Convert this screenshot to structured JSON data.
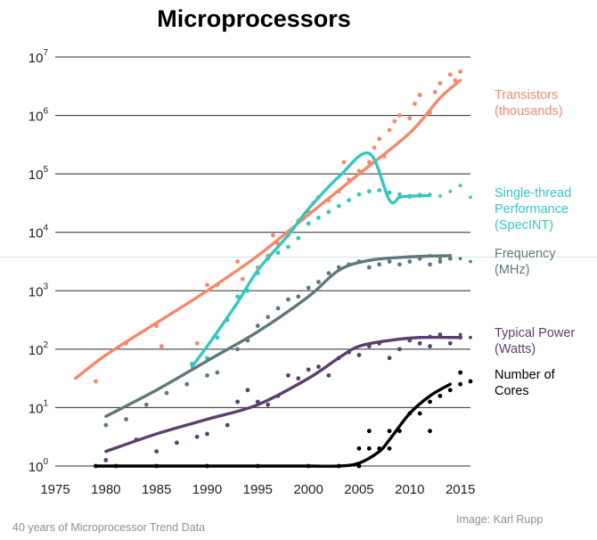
{
  "chart_data": {
    "type": "scatter",
    "title": "Microprocessors",
    "xlabel": "",
    "ylabel": "",
    "xlim": [
      1975,
      2016
    ],
    "ylim": [
      0,
      7
    ],
    "y_scale": "log10",
    "x_ticks": [
      "1975",
      "1980",
      "1985",
      "1990",
      "1995",
      "2000",
      "2005",
      "2010",
      "2015"
    ],
    "y_ticks": [
      {
        "base": "10",
        "exp": "0"
      },
      {
        "base": "10",
        "exp": "1"
      },
      {
        "base": "10",
        "exp": "2"
      },
      {
        "base": "10",
        "exp": "3"
      },
      {
        "base": "10",
        "exp": "4"
      },
      {
        "base": "10",
        "exp": "5"
      },
      {
        "base": "10",
        "exp": "6"
      },
      {
        "base": "10",
        "exp": "7"
      }
    ],
    "grid": "horizontal",
    "legend": "right",
    "series": [
      {
        "name": "Transistors\n(thousands)",
        "color": "#f4896b",
        "trend": [
          [
            1977,
            1.5
          ],
          [
            1980,
            1.9
          ],
          [
            1985,
            2.45
          ],
          [
            1990,
            3.0
          ],
          [
            1995,
            3.6
          ],
          [
            2000,
            4.3
          ],
          [
            2005,
            5.0
          ],
          [
            2010,
            5.7
          ],
          [
            2013,
            6.3
          ],
          [
            2015,
            6.6
          ]
        ],
        "points": [
          [
            1979,
            1.45
          ],
          [
            1982,
            2.1
          ],
          [
            1985,
            2.4
          ],
          [
            1985.5,
            2.05
          ],
          [
            1989,
            2.1
          ],
          [
            1990,
            3.1
          ],
          [
            1991,
            3.1
          ],
          [
            1993,
            3.5
          ],
          [
            1993.5,
            3.2
          ],
          [
            1995,
            3.4
          ],
          [
            1996,
            3.6
          ],
          [
            1996.5,
            3.95
          ],
          [
            1997,
            3.8
          ],
          [
            1998,
            3.95
          ],
          [
            1999,
            4.2
          ],
          [
            2000,
            4.35
          ],
          [
            2000.5,
            4.5
          ],
          [
            2001,
            4.6
          ],
          [
            2002,
            4.55
          ],
          [
            2003,
            4.7
          ],
          [
            2003.5,
            5.2
          ],
          [
            2004,
            4.9
          ],
          [
            2005,
            5.05
          ],
          [
            2006,
            5.2
          ],
          [
            2006.5,
            5.45
          ],
          [
            2007,
            5.6
          ],
          [
            2007.5,
            5.3
          ],
          [
            2008,
            5.75
          ],
          [
            2008.5,
            5.9
          ],
          [
            2009,
            6.0
          ],
          [
            2010,
            5.95
          ],
          [
            2010.5,
            6.2
          ],
          [
            2011,
            6.35
          ],
          [
            2012,
            6.05
          ],
          [
            2012.5,
            6.4
          ],
          [
            2013,
            6.55
          ],
          [
            2014,
            6.7
          ],
          [
            2014.5,
            6.6
          ],
          [
            2015,
            6.75
          ]
        ]
      },
      {
        "name": "Single-thread\nPerformance\n(SpecINT)",
        "color": "#35c7bf",
        "trend": [
          [
            1988.5,
            1.7
          ],
          [
            1990,
            2.05
          ],
          [
            1993,
            2.8
          ],
          [
            1995,
            3.35
          ],
          [
            1998,
            3.95
          ],
          [
            2000,
            4.4
          ],
          [
            2003,
            4.95
          ],
          [
            2006,
            5.35
          ],
          [
            2008,
            4.55
          ],
          [
            2009,
            4.6
          ],
          [
            2010,
            4.62
          ],
          [
            2012,
            4.63
          ]
        ],
        "dotted_tail": [
          [
            2010,
            4.6
          ],
          [
            2011,
            4.62
          ],
          [
            2012,
            4.65
          ],
          [
            2013,
            4.62
          ],
          [
            2014,
            4.7
          ],
          [
            2015,
            4.8
          ],
          [
            2016,
            4.6
          ]
        ],
        "points": [
          [
            1988.5,
            1.75
          ],
          [
            1990,
            1.85
          ],
          [
            1991,
            2.2
          ],
          [
            1992,
            2.5
          ],
          [
            1993,
            2.9
          ],
          [
            1994,
            3.0
          ],
          [
            1995,
            3.3
          ],
          [
            1996,
            3.55
          ],
          [
            1997,
            3.65
          ],
          [
            1998,
            3.75
          ],
          [
            1999,
            3.9
          ],
          [
            2000,
            4.15
          ],
          [
            2001,
            4.25
          ],
          [
            2002,
            4.35
          ],
          [
            2003,
            4.45
          ],
          [
            2004,
            4.55
          ],
          [
            2005,
            4.65
          ],
          [
            2006,
            4.7
          ],
          [
            2007,
            4.72
          ],
          [
            2008,
            4.68
          ],
          [
            2009,
            4.65
          ],
          [
            2010,
            4.62
          ],
          [
            2011,
            4.64
          ]
        ]
      },
      {
        "name": "Frequency\n(MHz)",
        "color": "#5f7a7a",
        "trend": [
          [
            1980,
            0.85
          ],
          [
            1985,
            1.3
          ],
          [
            1990,
            1.8
          ],
          [
            1995,
            2.3
          ],
          [
            2000,
            2.9
          ],
          [
            2003,
            3.35
          ],
          [
            2006,
            3.52
          ],
          [
            2010,
            3.58
          ],
          [
            2014,
            3.6
          ]
        ],
        "dotted_tail": [
          [
            2010,
            3.58
          ],
          [
            2011,
            3.55
          ],
          [
            2012,
            3.6
          ],
          [
            2013,
            3.55
          ],
          [
            2014,
            3.6
          ],
          [
            2015,
            3.55
          ],
          [
            2016,
            3.5
          ]
        ],
        "points": [
          [
            1980,
            0.7
          ],
          [
            1982,
            0.8
          ],
          [
            1984,
            1.05
          ],
          [
            1986,
            1.25
          ],
          [
            1988,
            1.4
          ],
          [
            1990,
            1.55
          ],
          [
            1991,
            1.6
          ],
          [
            1993,
            2.0
          ],
          [
            1994,
            2.15
          ],
          [
            1995,
            2.4
          ],
          [
            1996,
            2.55
          ],
          [
            1997,
            2.7
          ],
          [
            1998,
            2.85
          ],
          [
            1999,
            2.9
          ],
          [
            2000,
            3.05
          ],
          [
            2001,
            3.15
          ],
          [
            2002,
            3.3
          ],
          [
            2003,
            3.4
          ],
          [
            2004,
            3.45
          ],
          [
            2005,
            3.5
          ],
          [
            2006,
            3.4
          ],
          [
            2007,
            3.45
          ],
          [
            2008,
            3.5
          ],
          [
            2009,
            3.45
          ],
          [
            2010,
            3.5
          ],
          [
            2011,
            3.55
          ],
          [
            2012,
            3.45
          ],
          [
            2013,
            3.5
          ],
          [
            2014,
            3.55
          ]
        ]
      },
      {
        "name": "Typical Power\n(Watts)",
        "color": "#5b3f6f",
        "trend": [
          [
            1980,
            0.25
          ],
          [
            1985,
            0.55
          ],
          [
            1990,
            0.8
          ],
          [
            1995,
            1.05
          ],
          [
            2000,
            1.5
          ],
          [
            2003,
            1.85
          ],
          [
            2005,
            2.05
          ],
          [
            2008,
            2.15
          ],
          [
            2011,
            2.2
          ],
          [
            2015,
            2.2
          ]
        ],
        "dotted_tail": [
          [
            2011,
            2.2
          ],
          [
            2012,
            2.22
          ],
          [
            2013,
            2.24
          ],
          [
            2014,
            2.2
          ],
          [
            2015,
            2.25
          ],
          [
            2016,
            2.2
          ]
        ],
        "points": [
          [
            1980,
            0.1
          ],
          [
            1983,
            0.45
          ],
          [
            1985,
            0.25
          ],
          [
            1987,
            0.4
          ],
          [
            1989,
            0.5
          ],
          [
            1990,
            0.55
          ],
          [
            1992,
            0.7
          ],
          [
            1993,
            1.1
          ],
          [
            1994,
            1.3
          ],
          [
            1995,
            1.1
          ],
          [
            1996,
            1.05
          ],
          [
            1997,
            1.2
          ],
          [
            1998,
            1.55
          ],
          [
            1999,
            1.5
          ],
          [
            2000,
            1.65
          ],
          [
            2001,
            1.7
          ],
          [
            2002,
            1.55
          ],
          [
            2003,
            1.85
          ],
          [
            2004,
            1.95
          ],
          [
            2005,
            1.9
          ],
          [
            2006,
            2.05
          ],
          [
            2007,
            2.1
          ],
          [
            2008,
            1.85
          ],
          [
            2009,
            2.0
          ],
          [
            2010,
            2.15
          ],
          [
            2011,
            2.1
          ],
          [
            2012,
            2.05
          ],
          [
            2013,
            2.25
          ],
          [
            2014,
            2.1
          ],
          [
            2015,
            2.2
          ]
        ]
      },
      {
        "name": "Number of\nCores",
        "color": "#000000",
        "trend": [
          [
            1979,
            0.0
          ],
          [
            1985,
            0.0
          ],
          [
            1990,
            0.0
          ],
          [
            1995,
            0.0
          ],
          [
            2000,
            0.0
          ],
          [
            2003,
            0.0
          ],
          [
            2005,
            0.05
          ],
          [
            2007,
            0.25
          ],
          [
            2008,
            0.45
          ],
          [
            2010,
            0.9
          ],
          [
            2012,
            1.2
          ],
          [
            2014,
            1.4
          ]
        ],
        "points": [
          [
            1979,
            0.0
          ],
          [
            1981,
            0.0
          ],
          [
            1985,
            0.0
          ],
          [
            1990,
            0.0
          ],
          [
            1995,
            0.0
          ],
          [
            2000,
            0.0
          ],
          [
            2003,
            0.0
          ],
          [
            2005,
            0.0
          ],
          [
            2005,
            0.3
          ],
          [
            2006,
            0.6
          ],
          [
            2006,
            0.3
          ],
          [
            2007,
            0.3
          ],
          [
            2008,
            0.3
          ],
          [
            2008,
            0.6
          ],
          [
            2009,
            0.6
          ],
          [
            2010,
            0.9
          ],
          [
            2011,
            0.9
          ],
          [
            2012,
            1.1
          ],
          [
            2012,
            0.6
          ],
          [
            2013,
            1.2
          ],
          [
            2014,
            1.3
          ],
          [
            2015,
            1.4
          ],
          [
            2015,
            1.6
          ],
          [
            2016,
            1.45
          ]
        ]
      }
    ]
  },
  "footer": {
    "caption": "40 years of Microprocessor Trend Data",
    "credit": "Image: Karl Rupp"
  }
}
